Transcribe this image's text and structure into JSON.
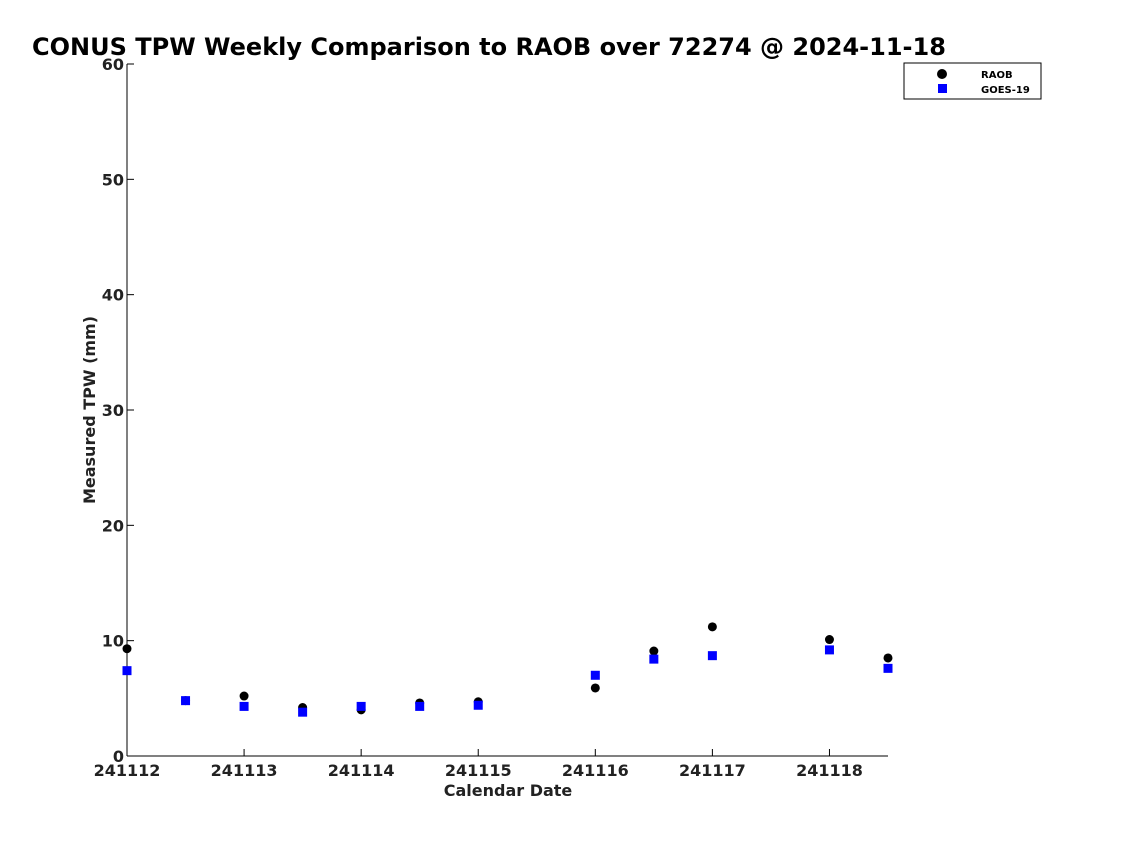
{
  "chart_data": {
    "type": "scatter",
    "title": "CONUS TPW Weekly Comparison to RAOB over 72274 @ 2024-11-18",
    "xlabel": "Calendar Date",
    "ylabel": "Measured TPW (mm)",
    "xlim": [
      241112,
      241118.5
    ],
    "ylim": [
      0,
      60
    ],
    "x_ticks": [
      241112,
      241113,
      241114,
      241115,
      241116,
      241117,
      241118
    ],
    "x_tick_labels": [
      "241112",
      "241113",
      "241114",
      "241115",
      "241116",
      "241117",
      "241118"
    ],
    "y_ticks": [
      0,
      10,
      20,
      30,
      40,
      50,
      60
    ],
    "y_tick_labels": [
      "0",
      "10",
      "20",
      "30",
      "40",
      "50",
      "60"
    ],
    "grid": false,
    "legend_position": "top-right",
    "series": [
      {
        "name": "RAOB",
        "marker": "circle",
        "color": "#000000",
        "x": [
          241112,
          241112.5,
          241113,
          241113.5,
          241114,
          241114.5,
          241115,
          241116,
          241116.5,
          241117,
          241118,
          241118.5
        ],
        "y": [
          9.3,
          4.8,
          5.2,
          4.2,
          4.0,
          4.6,
          4.7,
          5.9,
          9.1,
          11.2,
          10.1,
          8.5
        ]
      },
      {
        "name": "GOES-19",
        "marker": "square",
        "color": "#0000ff",
        "x": [
          241112,
          241112.5,
          241113,
          241113.5,
          241114,
          241114.5,
          241115,
          241116,
          241116.5,
          241117,
          241118,
          241118.5
        ],
        "y": [
          7.4,
          4.8,
          4.3,
          3.8,
          4.3,
          4.3,
          4.4,
          7.0,
          8.4,
          8.7,
          9.2,
          7.6
        ]
      }
    ]
  }
}
